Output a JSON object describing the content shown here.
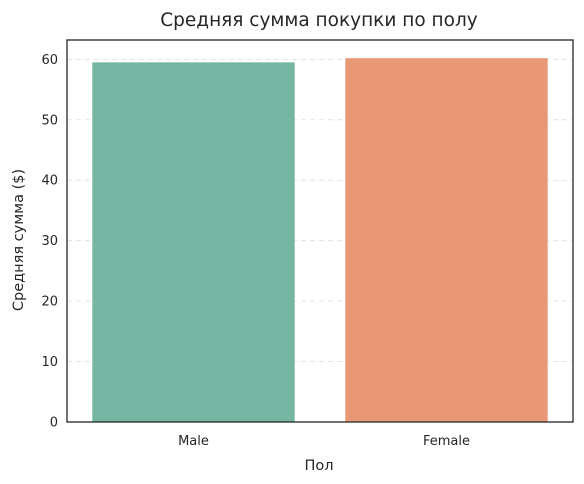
{
  "chart_data": {
    "type": "bar",
    "title": "Средняя сумма покупки по полу",
    "xlabel": "Пол",
    "ylabel": "Средняя сумма ($)",
    "categories": [
      "Male",
      "Female"
    ],
    "values": [
      59.5,
      60.2
    ],
    "colors": [
      "#74b6a1",
      "#e99876"
    ],
    "ylim": [
      0,
      63.2
    ],
    "yticks": [
      0,
      10,
      20,
      30,
      40,
      50,
      60
    ],
    "grid": "y-dashed",
    "grid_color": "#e3e3e3",
    "axis_color": "#262626"
  }
}
